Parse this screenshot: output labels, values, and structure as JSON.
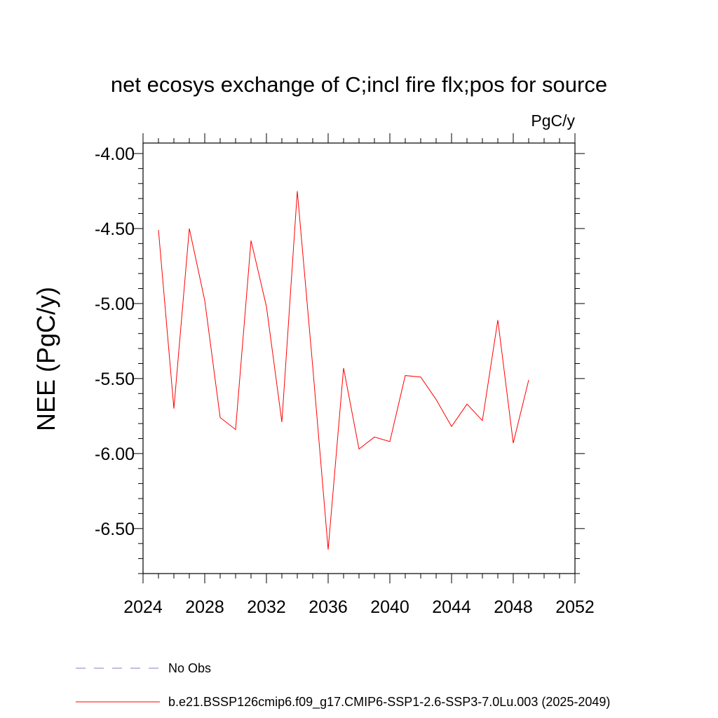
{
  "chart_data": {
    "type": "line",
    "title": "net ecosys exchange of C;incl fire flx;pos for source",
    "units_label": "PgC/y",
    "ylabel": "NEE  (PgC/y)",
    "xlabel": "",
    "xlim": [
      2024,
      2052
    ],
    "ylim": [
      -6.8,
      -3.93
    ],
    "x_ticks": [
      2024,
      2028,
      2032,
      2036,
      2040,
      2044,
      2048,
      2052
    ],
    "x_tick_labels": [
      "2024",
      "2028",
      "2032",
      "2036",
      "2040",
      "2044",
      "2048",
      "2052"
    ],
    "y_ticks": [
      -4.0,
      -4.5,
      -5.0,
      -5.5,
      -6.0,
      -6.5
    ],
    "y_tick_labels": [
      "-4.00",
      "-4.50",
      "-5.00",
      "-5.50",
      "-6.00",
      "-6.50"
    ],
    "series": [
      {
        "name": "b.e21.BSSP126cmip6.f09_g17.CMIP6-SSP1-2.6-SSP3-7.0Lu.003 (2025-2049)",
        "color": "#ff0000",
        "x": [
          2025,
          2026,
          2027,
          2028,
          2029,
          2030,
          2031,
          2032,
          2033,
          2034,
          2035,
          2036,
          2037,
          2038,
          2039,
          2040,
          2041,
          2042,
          2043,
          2044,
          2045,
          2046,
          2047,
          2048,
          2049
        ],
        "values": [
          -4.51,
          -5.7,
          -4.5,
          -4.98,
          -5.76,
          -5.84,
          -4.58,
          -5.02,
          -5.79,
          -4.25,
          -5.42,
          -6.64,
          -5.43,
          -5.97,
          -5.89,
          -5.92,
          -5.48,
          -5.49,
          -5.64,
          -5.82,
          -5.67,
          -5.78,
          -5.11,
          -5.93,
          -5.51
        ]
      }
    ],
    "legend": [
      {
        "label": "No Obs",
        "color": "#8080c0",
        "style": "dashed"
      },
      {
        "label": "b.e21.BSSP126cmip6.f09_g17.CMIP6-SSP1-2.6-SSP3-7.0Lu.003 (2025-2049)",
        "color": "#ff0000",
        "style": "solid"
      }
    ]
  }
}
